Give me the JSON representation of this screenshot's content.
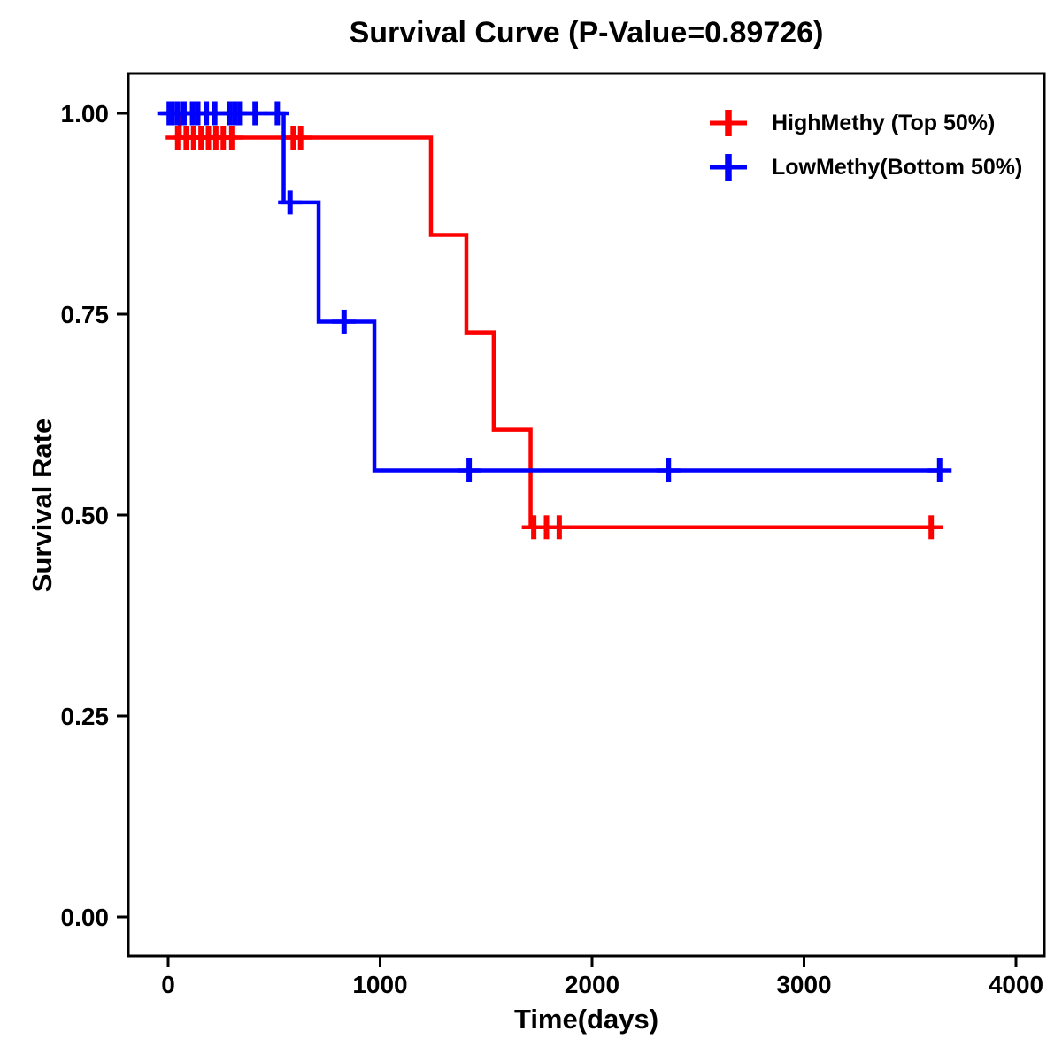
{
  "title": "Survival Curve (P-Value=0.89726)",
  "chart_data": {
    "type": "line",
    "subtype": "kaplan-meier-step",
    "title": "Survival Curve (P-Value=0.89726)",
    "p_value": "0.89726",
    "xlabel": "Time(days)",
    "ylabel": "Survival Rate",
    "xlim": [
      0,
      4000
    ],
    "ylim": [
      0.0,
      1.0
    ],
    "x_ticks": [
      0,
      1000,
      2000,
      3000,
      4000
    ],
    "x_tick_labels": [
      "0",
      "1000",
      "2000",
      "3000",
      "4000"
    ],
    "y_ticks": [
      0.0,
      0.25,
      0.5,
      0.75,
      1.0
    ],
    "y_tick_labels": [
      "0.00",
      "0.25",
      "0.50",
      "0.75",
      "1.00"
    ],
    "grid": false,
    "legend_position": "top-right",
    "series": [
      {
        "name": "HighMethy (Top 50%)",
        "color": "#FF0000",
        "steps": [
          [
            0,
            1.0
          ],
          [
            55,
            0.9697
          ],
          [
            1240,
            0.8485
          ],
          [
            1407,
            0.7273
          ],
          [
            1536,
            0.6061
          ],
          [
            1710,
            0.4848
          ],
          [
            3600,
            0.4848
          ]
        ],
        "censor_marks": [
          [
            45,
            0.9697
          ],
          [
            85,
            0.9697
          ],
          [
            120,
            0.9697
          ],
          [
            155,
            0.9697
          ],
          [
            190,
            0.9697
          ],
          [
            225,
            0.9697
          ],
          [
            260,
            0.9697
          ],
          [
            300,
            0.9697
          ],
          [
            590,
            0.9697
          ],
          [
            625,
            0.9697
          ],
          [
            1725,
            0.4848
          ],
          [
            1785,
            0.4848
          ],
          [
            1845,
            0.4848
          ],
          [
            3600,
            0.4848
          ]
        ]
      },
      {
        "name": "LowMethy(Bottom 50%)",
        "color": "#0000FF",
        "steps": [
          [
            0,
            1.0
          ],
          [
            545,
            0.8889
          ],
          [
            710,
            0.7407
          ],
          [
            973,
            0.5556
          ],
          [
            3640,
            0.5556
          ]
        ],
        "censor_marks": [
          [
            5,
            1.0
          ],
          [
            20,
            1.0
          ],
          [
            45,
            1.0
          ],
          [
            75,
            1.0
          ],
          [
            115,
            1.0
          ],
          [
            140,
            1.0
          ],
          [
            180,
            1.0
          ],
          [
            220,
            1.0
          ],
          [
            290,
            1.0
          ],
          [
            315,
            1.0
          ],
          [
            340,
            1.0
          ],
          [
            410,
            1.0
          ],
          [
            515,
            1.0
          ],
          [
            575,
            0.8889
          ],
          [
            830,
            0.7407
          ],
          [
            1420,
            0.5556
          ],
          [
            2360,
            0.5556
          ],
          [
            3640,
            0.5556
          ]
        ]
      }
    ]
  }
}
